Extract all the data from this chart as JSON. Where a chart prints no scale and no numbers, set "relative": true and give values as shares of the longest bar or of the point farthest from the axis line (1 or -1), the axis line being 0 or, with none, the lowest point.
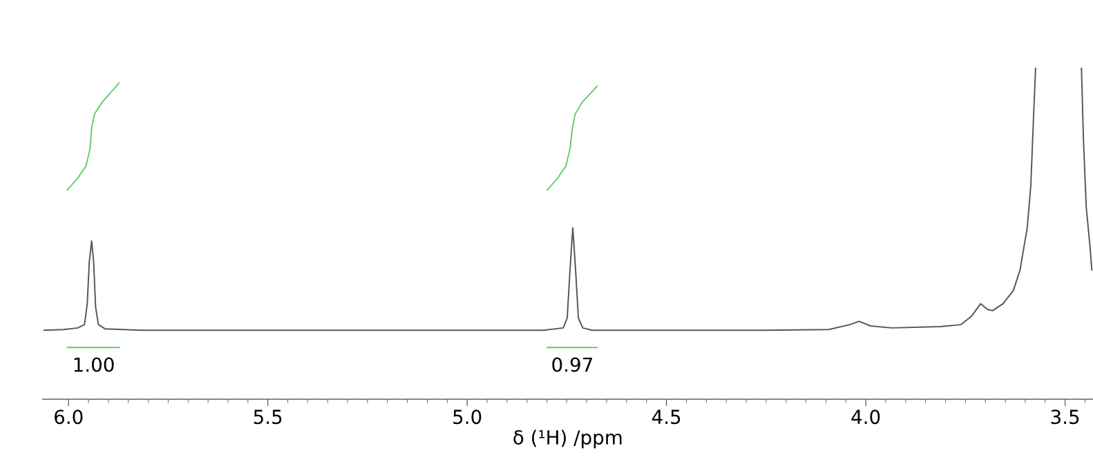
{
  "chart_data": {
    "type": "line",
    "relative": true,
    "xlabel": "δ (¹H) /ppm",
    "xlim": [
      6.065,
      3.43
    ],
    "xticks": [
      {
        "value": 6.0,
        "label": "6.0"
      },
      {
        "value": 5.95,
        "label": null
      },
      {
        "value": 5.9,
        "label": null
      },
      {
        "value": 5.85,
        "label": null
      },
      {
        "value": 5.8,
        "label": null
      },
      {
        "value": 5.75,
        "label": null
      },
      {
        "value": 5.7,
        "label": null
      },
      {
        "value": 5.65,
        "label": null
      },
      {
        "value": 5.6,
        "label": null
      },
      {
        "value": 5.55,
        "label": null
      },
      5.5,
      {
        "value": 5.45,
        "label": null
      },
      {
        "value": 5.4,
        "label": null
      },
      {
        "value": 5.35,
        "label": null
      },
      {
        "value": 5.3,
        "label": null
      },
      {
        "value": 5.25,
        "label": null
      },
      {
        "value": 5.2,
        "label": null
      },
      {
        "value": 5.15,
        "label": null
      },
      {
        "value": 5.1,
        "label": null
      },
      {
        "value": 5.05,
        "label": null
      },
      {
        "value": 5.0,
        "label": "5.0"
      },
      {
        "value": 4.95,
        "label": null
      },
      {
        "value": 4.9,
        "label": null
      },
      {
        "value": 4.85,
        "label": null
      },
      {
        "value": 4.8,
        "label": null
      },
      {
        "value": 4.75,
        "label": null
      },
      {
        "value": 4.7,
        "label": null
      },
      {
        "value": 4.65,
        "label": null
      },
      {
        "value": 4.6,
        "label": null
      },
      {
        "value": 4.55,
        "label": null
      },
      4.5,
      {
        "value": 4.45,
        "label": null
      },
      {
        "value": 4.4,
        "label": null
      },
      {
        "value": 4.35,
        "label": null
      },
      {
        "value": 4.3,
        "label": null
      },
      {
        "value": 4.25,
        "label": null
      },
      {
        "value": 4.2,
        "label": null
      },
      {
        "value": 4.15,
        "label": null
      },
      {
        "value": 4.1,
        "label": null
      },
      {
        "value": 4.05,
        "label": null
      },
      {
        "value": 4.0,
        "label": "4.0"
      },
      {
        "value": 3.95,
        "label": null
      },
      {
        "value": 3.9,
        "label": null
      },
      {
        "value": 3.85,
        "label": null
      },
      {
        "value": 3.8,
        "label": null
      },
      {
        "value": 3.75,
        "label": null
      },
      {
        "value": 3.7,
        "label": null
      },
      {
        "value": 3.65,
        "label": null
      },
      {
        "value": 3.6,
        "label": null
      },
      {
        "value": 3.55,
        "label": null
      },
      3.5,
      {
        "value": 3.45,
        "label": null
      }
    ],
    "grid": false,
    "marker": "none",
    "line_style": "solid",
    "series": [
      {
        "color": "#555555",
        "x": [
          6.061,
          6.012,
          5.977,
          5.96,
          5.953,
          5.948,
          5.942,
          5.937,
          5.932,
          5.925,
          5.908,
          5.82,
          5.297,
          4.808,
          4.759,
          4.749,
          4.742,
          4.735,
          4.728,
          4.721,
          4.71,
          4.686,
          4.25,
          4.093,
          4.04,
          4.017,
          3.988,
          3.935,
          3.813,
          3.761,
          3.735,
          3.712,
          3.695,
          3.682,
          3.656,
          3.63,
          3.613,
          3.595,
          3.586,
          3.58,
          3.574,
          3.52,
          3.459,
          3.454,
          3.447,
          3.437,
          3.433
        ],
        "values": [
          0.208,
          0.21,
          0.215,
          0.225,
          0.288,
          0.414,
          0.477,
          0.414,
          0.277,
          0.225,
          0.212,
          0.208,
          0.208,
          0.208,
          0.215,
          0.245,
          0.39,
          0.517,
          0.39,
          0.245,
          0.215,
          0.208,
          0.208,
          0.21,
          0.225,
          0.235,
          0.221,
          0.215,
          0.219,
          0.225,
          0.25,
          0.288,
          0.271,
          0.267,
          0.288,
          0.327,
          0.39,
          0.517,
          0.644,
          0.826,
          1,
          null,
          1,
          0.786,
          0.58,
          0.454,
          0.39
        ]
      },
      {
        "color": "#66cc66",
        "x": [
          6.003,
          5.977,
          5.956,
          5.946,
          5.942,
          5.935,
          5.916,
          5.873
        ],
        "values": [
          0.631,
          0.667,
          0.704,
          0.756,
          0.819,
          0.86,
          0.895,
          0.954
        ]
      },
      {
        "color": "#66cc66",
        "x": [
          4.799,
          4.773,
          4.752,
          4.742,
          4.736,
          4.729,
          4.712,
          4.674
        ],
        "values": [
          0.631,
          0.667,
          0.704,
          0.756,
          0.819,
          0.86,
          0.895,
          0.944
        ]
      },
      {
        "color": "#66cc66",
        "x": [
          6.003,
          5.873
        ],
        "values": [
          0.156,
          0.156
        ]
      },
      {
        "color": "#66cc66",
        "x": [
          4.799,
          4.674
        ],
        "values": [
          0.156,
          0.156
        ]
      }
    ],
    "annotations": [
      {
        "text": "1.00",
        "x": 5.937,
        "y": 0.156
      },
      {
        "text": "0.97",
        "x": 4.736,
        "y": 0.156
      }
    ]
  }
}
